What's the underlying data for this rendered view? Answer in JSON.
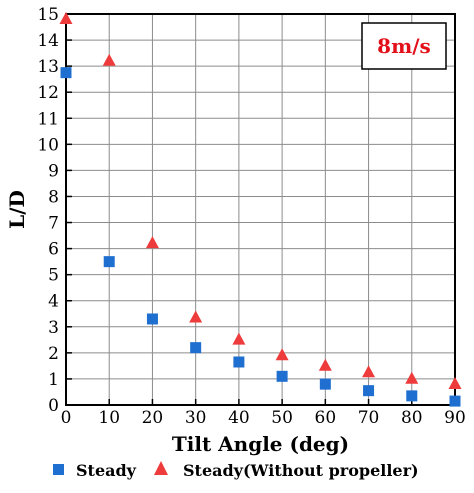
{
  "chart_data": {
    "type": "scatter",
    "xlabel": "Tilt Angle (deg)",
    "ylabel": "L/D",
    "xlim": [
      0,
      90
    ],
    "ylim": [
      0,
      15
    ],
    "xticks": [
      "0",
      "10",
      "20",
      "30",
      "40",
      "50",
      "60",
      "70",
      "80",
      "90"
    ],
    "yticks": [
      "0",
      "1",
      "2",
      "3",
      "4",
      "5",
      "6",
      "7",
      "8",
      "9",
      "10",
      "11",
      "12",
      "13",
      "14",
      "15"
    ],
    "grid": true,
    "legend_position": "bottom",
    "annotation": {
      "text": "8m/s",
      "color": "#e3101a",
      "position": "top-right"
    },
    "series": [
      {
        "name": "Steady",
        "marker": "square",
        "color": "#1f6fd1",
        "x": [
          0,
          10,
          20,
          30,
          40,
          50,
          60,
          70,
          80,
          90
        ],
        "y": [
          12.75,
          5.5,
          3.3,
          2.2,
          1.65,
          1.1,
          0.8,
          0.55,
          0.35,
          0.15
        ]
      },
      {
        "name": "Steady(Without propeller)",
        "marker": "triangle",
        "color": "#ee3b3b",
        "x": [
          0,
          10,
          20,
          30,
          40,
          50,
          60,
          70,
          80,
          90
        ],
        "y": [
          14.8,
          13.2,
          6.2,
          3.35,
          2.5,
          1.9,
          1.5,
          1.25,
          1.0,
          0.8
        ]
      }
    ]
  }
}
